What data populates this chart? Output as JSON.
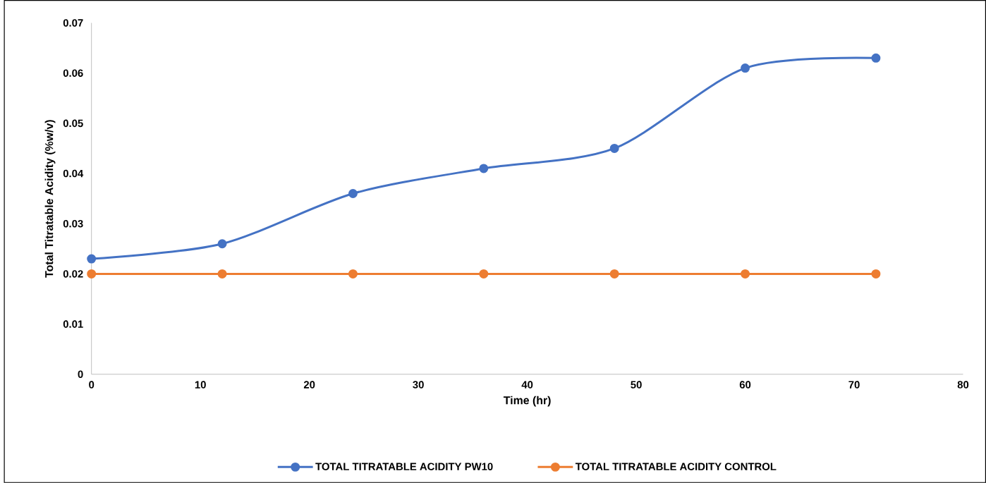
{
  "chart_data": {
    "type": "line",
    "xlabel": "Time (hr)",
    "ylabel": "Total Titratable Acidity (%w/v)",
    "x": [
      0,
      12,
      24,
      36,
      48,
      60,
      72
    ],
    "series": [
      {
        "name": "TOTAL TITRATABLE ACIDITY PW10",
        "color": "#4472c4",
        "values": [
          0.023,
          0.026,
          0.036,
          0.041,
          0.045,
          0.061,
          0.063
        ]
      },
      {
        "name": "TOTAL TITRATABLE ACIDITY CONTROL",
        "color": "#ed7d31",
        "values": [
          0.02,
          0.02,
          0.02,
          0.02,
          0.02,
          0.02,
          0.02
        ]
      }
    ],
    "xlim": [
      0,
      80
    ],
    "ylim": [
      0,
      0.07
    ],
    "xticks": [
      0,
      10,
      20,
      30,
      40,
      50,
      60,
      70,
      80
    ],
    "yticks": [
      0,
      0.01,
      0.02,
      0.03,
      0.04,
      0.05,
      0.06,
      0.07
    ],
    "legend": "bottom",
    "marker": "circle"
  }
}
